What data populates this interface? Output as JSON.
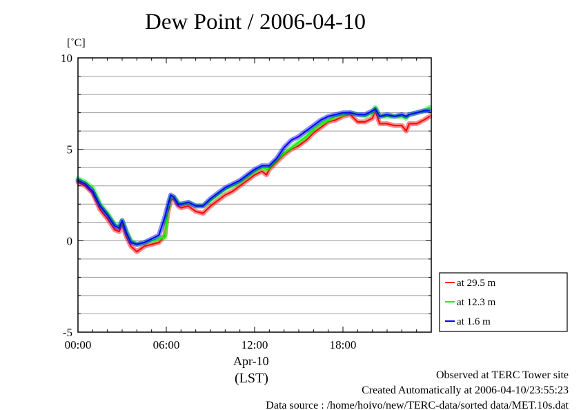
{
  "chart_data": {
    "type": "line",
    "title": "Dew Point / 2006-04-10",
    "ylabel": "[˚C]",
    "xlabel": "Apr-10",
    "xlabel2": "(LST)",
    "ylim": [
      -5,
      10
    ],
    "xlim": [
      0,
      24
    ],
    "yticks": [
      {
        "value": 10,
        "label": "10"
      },
      {
        "value": 5,
        "label": "5"
      },
      {
        "value": 0,
        "label": "0"
      },
      {
        "value": -5,
        "label": "-5"
      }
    ],
    "xticks": [
      {
        "value": 0,
        "label": "00:00"
      },
      {
        "value": 6,
        "label": "06:00"
      },
      {
        "value": 12,
        "label": "12:00"
      },
      {
        "value": 18,
        "label": "18:00"
      }
    ],
    "grid": true,
    "legend_position": "right, below plot",
    "series": [
      {
        "name": "at 29.5 m",
        "color": "#ff0000",
        "x": [
          0,
          0.5,
          1,
          1.5,
          2,
          2.5,
          2.8,
          3,
          3.3,
          3.6,
          4,
          4.5,
          5,
          5.5,
          5.9,
          6.1,
          6.3,
          6.5,
          6.8,
          7,
          7.5,
          8,
          8.5,
          9,
          9.5,
          10,
          10.5,
          11,
          11.5,
          12,
          12.5,
          12.8,
          13,
          13.5,
          14,
          14.5,
          15,
          15.5,
          16,
          16.5,
          17,
          17.5,
          18,
          18.5,
          19,
          19.5,
          20,
          20.2,
          20.5,
          21,
          21.5,
          22,
          22.3,
          22.5,
          23,
          23.5,
          23.9
        ],
        "values": [
          3.2,
          3.0,
          2.6,
          1.7,
          1.2,
          0.6,
          0.5,
          0.9,
          0.2,
          -0.3,
          -0.6,
          -0.3,
          -0.2,
          -0.1,
          0.3,
          1.5,
          2.2,
          2.3,
          1.9,
          1.8,
          1.9,
          1.6,
          1.5,
          1.9,
          2.2,
          2.5,
          2.7,
          3.0,
          3.3,
          3.6,
          3.8,
          3.6,
          3.9,
          4.3,
          4.7,
          5.0,
          5.2,
          5.5,
          5.9,
          6.2,
          6.5,
          6.6,
          6.8,
          6.9,
          6.5,
          6.5,
          6.7,
          7.1,
          6.4,
          6.4,
          6.3,
          6.3,
          6.0,
          6.4,
          6.4,
          6.6,
          6.8
        ]
      },
      {
        "name": "at 12.3 m",
        "color": "#00ff00",
        "x": [
          0,
          0.5,
          1,
          1.5,
          2,
          2.5,
          2.8,
          3,
          3.3,
          3.6,
          4,
          4.5,
          5,
          5.5,
          5.9,
          6.1,
          6.3,
          6.5,
          6.8,
          7,
          7.5,
          8,
          8.5,
          9,
          9.5,
          10,
          10.5,
          11,
          11.5,
          12,
          12.5,
          12.8,
          13,
          13.5,
          14,
          14.5,
          15,
          15.5,
          16,
          16.5,
          17,
          17.5,
          18,
          18.5,
          19,
          19.5,
          20,
          20.2,
          20.5,
          21,
          21.5,
          22,
          22.3,
          22.5,
          23,
          23.5,
          23.9
        ],
        "values": [
          3.4,
          3.2,
          2.9,
          2.0,
          1.5,
          0.9,
          0.8,
          1.1,
          0.5,
          0.0,
          -0.2,
          -0.1,
          0.0,
          0.1,
          0.2,
          1.7,
          2.4,
          2.4,
          2.1,
          2.0,
          2.1,
          1.9,
          1.9,
          2.2,
          2.5,
          2.8,
          3.0,
          3.2,
          3.5,
          3.8,
          4.0,
          3.9,
          4.0,
          4.4,
          4.8,
          5.1,
          5.4,
          5.7,
          6.1,
          6.4,
          6.6,
          6.8,
          6.9,
          7.0,
          6.9,
          6.8,
          7.0,
          7.3,
          6.8,
          6.8,
          6.8,
          6.8,
          6.7,
          6.9,
          7.0,
          7.1,
          7.3
        ]
      },
      {
        "name": "at 1.6 m",
        "color": "#0000ff",
        "x": [
          0,
          0.5,
          1,
          1.5,
          2,
          2.5,
          2.8,
          3,
          3.3,
          3.6,
          4,
          4.5,
          5,
          5.5,
          5.9,
          6.1,
          6.3,
          6.5,
          6.8,
          7,
          7.5,
          8,
          8.5,
          9,
          9.5,
          10,
          10.5,
          11,
          11.5,
          12,
          12.5,
          12.8,
          13,
          13.5,
          14,
          14.5,
          15,
          15.5,
          16,
          16.5,
          17,
          17.5,
          18,
          18.5,
          19,
          19.5,
          20,
          20.2,
          20.5,
          21,
          21.5,
          22,
          22.3,
          22.5,
          23,
          23.5,
          23.9
        ],
        "values": [
          3.3,
          3.1,
          2.7,
          1.9,
          1.4,
          0.8,
          0.7,
          1.1,
          0.4,
          -0.1,
          -0.2,
          -0.1,
          0.1,
          0.3,
          1.3,
          1.9,
          2.5,
          2.4,
          2.0,
          2.0,
          2.1,
          1.9,
          1.9,
          2.3,
          2.6,
          2.9,
          3.1,
          3.3,
          3.6,
          3.9,
          4.1,
          4.1,
          4.1,
          4.5,
          5.1,
          5.5,
          5.7,
          6.0,
          6.3,
          6.6,
          6.8,
          6.9,
          7.0,
          7.0,
          6.9,
          6.9,
          7.1,
          7.2,
          6.8,
          6.9,
          6.8,
          6.9,
          6.8,
          6.9,
          7.0,
          7.1,
          7.1
        ]
      }
    ]
  },
  "footer": {
    "line1": "Observed at TERC Tower site",
    "line2": "Created Automatically at 2006-04-10/23:55:23",
    "line3": "Data source : /home/hoivo/new/TERC-data/sorted  data/MET.10s.dat"
  }
}
